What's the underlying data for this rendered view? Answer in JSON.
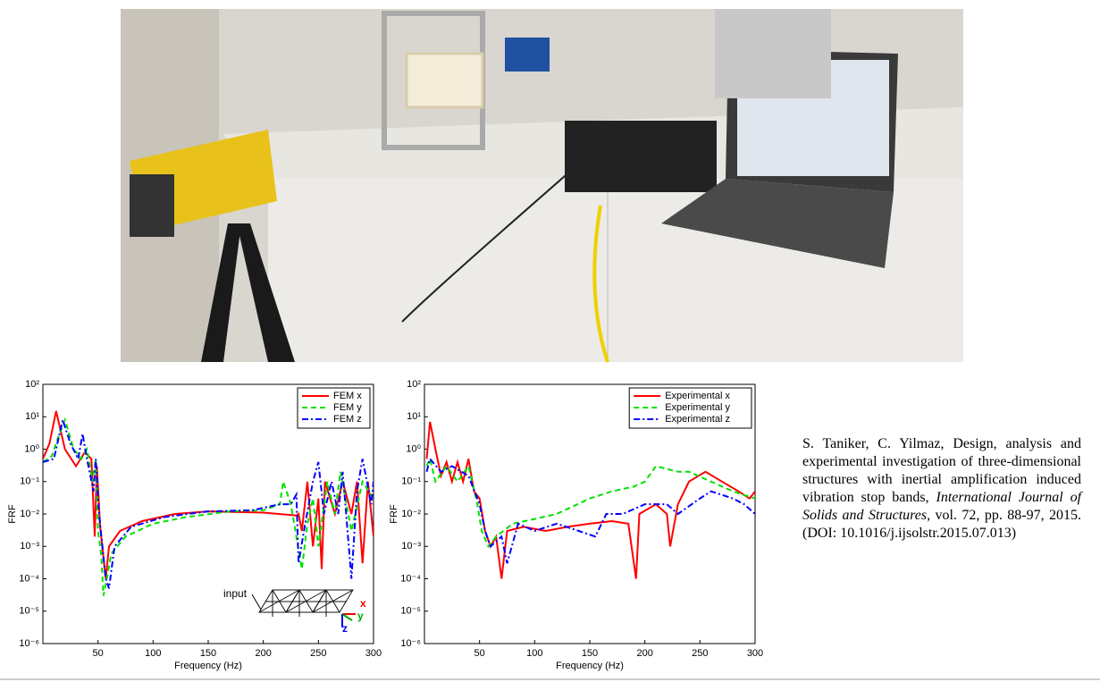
{
  "chart_data": [
    {
      "type": "line",
      "xlabel": "Frequency (Hz)",
      "ylabel": "FRF",
      "xlim": [
        0,
        300
      ],
      "ylim": [
        1e-06,
        100
      ],
      "log_y": true,
      "xticks": [
        50,
        100,
        150,
        200,
        250,
        300
      ],
      "yticks": [
        {
          "value": 1e-06,
          "label": "10⁻⁶"
        },
        {
          "value": 1e-05,
          "label": "10⁻⁵"
        },
        {
          "value": 0.0001,
          "label": "10⁻⁴"
        },
        {
          "value": 0.001,
          "label": "10⁻³"
        },
        {
          "value": 0.01,
          "label": "10⁻²"
        },
        {
          "value": 0.1,
          "label": "10⁻¹"
        },
        {
          "value": 1,
          "label": "10⁰"
        },
        {
          "value": 10,
          "label": "10¹"
        },
        {
          "value": 100,
          "label": "10²"
        }
      ],
      "legend": "upper right",
      "annotations": [
        "input",
        "x",
        "y",
        "z"
      ],
      "series": [
        {
          "name": "FEM x",
          "color": "#ff0000",
          "style": "solid",
          "x": [
            0,
            6,
            12,
            20,
            30,
            38,
            44,
            47,
            49,
            52,
            57,
            60,
            70,
            90,
            120,
            150,
            200,
            230,
            232,
            235,
            240,
            245,
            250,
            253,
            256,
            265,
            272,
            280,
            285,
            290,
            295,
            300
          ],
          "values": [
            0.5,
            1.5,
            15,
            1,
            0.3,
            0.8,
            0.5,
            0.002,
            0.3,
            0.004,
            0.0001,
            0.001,
            0.003,
            0.006,
            0.01,
            0.012,
            0.011,
            0.009,
            0.01,
            0.003,
            0.1,
            0.001,
            0.03,
            0.0002,
            0.1,
            0.01,
            0.1,
            0.01,
            0.1,
            0.0003,
            0.1,
            0.002
          ]
        },
        {
          "name": "FEM y",
          "color": "#00e000",
          "style": "dashed",
          "x": [
            0,
            8,
            15,
            20,
            28,
            35,
            40,
            45,
            48,
            50,
            53,
            55,
            58,
            62,
            75,
            100,
            130,
            170,
            200,
            215,
            218,
            225,
            235,
            240,
            245,
            250,
            258,
            265,
            270,
            280,
            290,
            300
          ],
          "values": [
            0.4,
            0.6,
            3,
            8,
            1,
            0.5,
            1,
            0.1,
            0.5,
            0.003,
            0.0005,
            3e-05,
            0.0001,
            0.0006,
            0.002,
            0.005,
            0.008,
            0.012,
            0.013,
            0.02,
            0.1,
            0.02,
            0.0002,
            0.005,
            0.03,
            0.001,
            0.1,
            0.01,
            0.2,
            0.003,
            0.1,
            0.03
          ]
        },
        {
          "name": "FEM z",
          "color": "#0000ff",
          "style": "dashdot",
          "x": [
            0,
            10,
            18,
            25,
            32,
            36,
            40,
            46,
            48,
            51,
            57,
            60,
            65,
            80,
            110,
            150,
            190,
            215,
            225,
            230,
            232,
            238,
            245,
            250,
            255,
            262,
            268,
            272,
            280,
            285,
            290,
            298,
            300
          ],
          "values": [
            0.4,
            0.5,
            8,
            1.5,
            0.5,
            3,
            0.5,
            0.05,
            0.5,
            0.01,
            0.0001,
            5e-05,
            0.001,
            0.004,
            0.008,
            0.012,
            0.013,
            0.02,
            0.02,
            0.04,
            0.0003,
            0.005,
            0.1,
            0.4,
            0.01,
            0.1,
            0.01,
            0.2,
            0.0001,
            0.05,
            0.5,
            0.02,
            0.1
          ]
        }
      ]
    },
    {
      "type": "line",
      "xlabel": "Frequency (Hz)",
      "ylabel": "FRF",
      "xlim": [
        0,
        300
      ],
      "ylim": [
        1e-06,
        100
      ],
      "log_y": true,
      "xticks": [
        50,
        100,
        150,
        200,
        250,
        300
      ],
      "yticks": [
        {
          "value": 1e-06,
          "label": "10⁻⁶"
        },
        {
          "value": 1e-05,
          "label": "10⁻⁵"
        },
        {
          "value": 0.0001,
          "label": "10⁻⁴"
        },
        {
          "value": 0.001,
          "label": "10⁻³"
        },
        {
          "value": 0.01,
          "label": "10⁻²"
        },
        {
          "value": 0.1,
          "label": "10⁻¹"
        },
        {
          "value": 1,
          "label": "10⁰"
        },
        {
          "value": 10,
          "label": "10¹"
        },
        {
          "value": 100,
          "label": "10²"
        }
      ],
      "legend": "upper right",
      "series": [
        {
          "name": "Experimental x",
          "color": "#ff0000",
          "style": "solid",
          "x": [
            2,
            5,
            10,
            15,
            20,
            25,
            30,
            35,
            40,
            45,
            50,
            55,
            60,
            65,
            70,
            75,
            90,
            110,
            130,
            150,
            170,
            185,
            192,
            195,
            210,
            220,
            223,
            230,
            240,
            255,
            270,
            285,
            295,
            300
          ],
          "values": [
            0.5,
            7,
            1,
            0.15,
            0.4,
            0.1,
            0.4,
            0.1,
            0.5,
            0.05,
            0.03,
            0.003,
            0.001,
            0.002,
            0.0001,
            0.003,
            0.004,
            0.003,
            0.004,
            0.005,
            0.006,
            0.005,
            0.0001,
            0.01,
            0.02,
            0.01,
            0.001,
            0.02,
            0.1,
            0.2,
            0.1,
            0.05,
            0.03,
            0.05
          ]
        },
        {
          "name": "Experimental y",
          "color": "#00e000",
          "style": "dashed",
          "x": [
            2,
            5,
            10,
            20,
            30,
            40,
            48,
            52,
            58,
            65,
            80,
            100,
            120,
            150,
            170,
            190,
            200,
            210,
            230,
            240,
            260,
            280,
            300
          ],
          "values": [
            0.3,
            0.5,
            0.1,
            0.3,
            0.1,
            0.3,
            0.02,
            0.003,
            0.001,
            0.002,
            0.005,
            0.007,
            0.01,
            0.03,
            0.05,
            0.07,
            0.1,
            0.3,
            0.2,
            0.2,
            0.1,
            0.05,
            0.03
          ]
        },
        {
          "name": "Experimental z",
          "color": "#0000ff",
          "style": "dashdot",
          "x": [
            2,
            5,
            15,
            25,
            40,
            50,
            55,
            60,
            70,
            75,
            85,
            100,
            120,
            140,
            155,
            165,
            180,
            200,
            220,
            230,
            250,
            260,
            280,
            290,
            300
          ],
          "values": [
            0.2,
            0.5,
            0.2,
            0.3,
            0.15,
            0.02,
            0.003,
            0.001,
            0.002,
            0.0003,
            0.005,
            0.003,
            0.005,
            0.003,
            0.002,
            0.01,
            0.01,
            0.02,
            0.02,
            0.01,
            0.03,
            0.05,
            0.03,
            0.02,
            0.01
          ]
        }
      ]
    }
  ],
  "citation": {
    "authors": "S. Taniker, C. Yilmaz,",
    "title": "Design, analysis and experimental investigation of three-dimensional structures with inertial amplification induced vibration stop bands,",
    "journal": "International Journal of Solids and Structures",
    "details": ", vol. 72, pp. 88-97, 2015.",
    "doi": "(DOI: 10.1016/j.ijsolstr.2015.07.013)"
  }
}
